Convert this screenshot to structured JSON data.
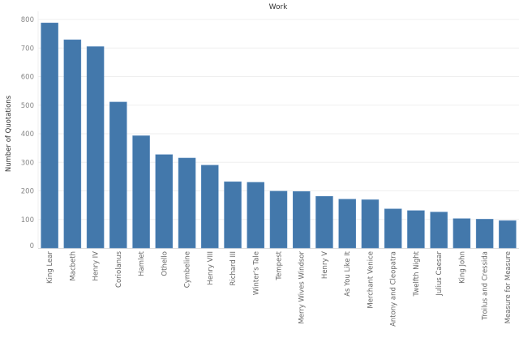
{
  "chart_data": {
    "type": "bar",
    "title": "Work",
    "xlabel": "",
    "ylabel": "Number of Quotations",
    "ylim": [
      0,
      800
    ],
    "yticks": [
      0,
      100,
      200,
      300,
      400,
      500,
      600,
      700,
      800
    ],
    "grid": true,
    "bar_color": "#4378ab",
    "categories": [
      "King Lear",
      "Macbeth",
      "Henry IV",
      "Coriolanus",
      "Hamlet",
      "Othello",
      "Cymbeline",
      "Henry VIII",
      "Richard III",
      "Winter's Tale",
      "Tempest",
      "Merry Wives Windsor",
      "Henry V",
      "As You Like It",
      "Merchant Venice",
      "Antony and Cleopatra",
      "Twelfth Night",
      "Julius Caesar",
      "King John",
      "Troilus and Cressida",
      "Measure for Measure"
    ],
    "values": [
      788,
      729,
      705,
      511,
      393,
      327,
      315,
      290,
      232,
      230,
      199,
      198,
      181,
      171,
      169,
      137,
      131,
      126,
      103,
      101,
      96
    ]
  }
}
